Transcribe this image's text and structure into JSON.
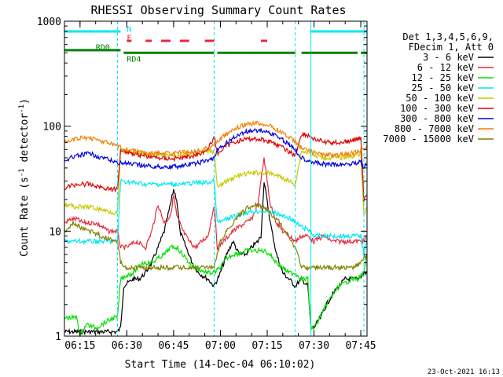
{
  "chart_data": {
    "type": "line",
    "title": "RHESSI Observing Summary Count Rates",
    "xlabel": "Start Time (14-Dec-04 06:10:02)",
    "ylabel_main": "Count Rate (s",
    "ylabel_sup1": "-1",
    "ylabel_mid": " detector",
    "ylabel_sup2": "-1",
    "ylabel_end": ")",
    "yscale": "log",
    "xlim": [
      "06:10",
      "07:47"
    ],
    "ylim": [
      1,
      1000
    ],
    "x_ticks": [
      "06:15",
      "06:30",
      "06:45",
      "07:00",
      "07:15",
      "07:30",
      "07:45"
    ],
    "y_ticks": [
      "1",
      "10",
      "100",
      "1000"
    ],
    "footer_date": "23-Oct-2021 16:13",
    "legend": {
      "header": [
        "Det 1,3,4,5,6,9,",
        "FDecim 1, Att 0"
      ],
      "entries": [
        {
          "label": "3 - 6 keV",
          "color": "#000000"
        },
        {
          "label": "6 - 12 keV",
          "color": "#e8283c"
        },
        {
          "label": "12 - 25 keV",
          "color": "#00e000"
        },
        {
          "label": "25 - 50 keV",
          "color": "#00e8f0"
        },
        {
          "label": "50 - 100 keV",
          "color": "#c8c800"
        },
        {
          "label": "100 - 300 keV",
          "color": "#e00000"
        },
        {
          "label": "300 - 800 keV",
          "color": "#0000e0"
        },
        {
          "label": "800 - 7000 keV",
          "color": "#f08000"
        },
        {
          "label": "7000 - 15000 keV",
          "color": "#808000"
        }
      ]
    },
    "flags": [
      {
        "label": "N",
        "color": "#00e8f0",
        "segments": [
          [
            "06:10",
            "06:28"
          ],
          [
            "07:29",
            "07:47"
          ]
        ],
        "level": 800
      },
      {
        "label": "F",
        "color": "#e8283c",
        "segments": [
          [
            "06:30",
            "06:31:30"
          ],
          [
            "06:36",
            "06:38"
          ],
          [
            "06:41",
            "06:44"
          ],
          [
            "06:47",
            "06:50"
          ],
          [
            "06:55",
            "06:58"
          ],
          [
            "07:13",
            "07:15"
          ]
        ],
        "level": 650
      },
      {
        "label": "RD0",
        "color": "#008000",
        "segments": [
          [
            "06:10",
            "06:28"
          ]
        ],
        "level": 530
      },
      {
        "label": "RD4",
        "color": "#008000",
        "segments": [
          [
            "06:29",
            "06:58"
          ],
          [
            "06:59",
            "07:24"
          ],
          [
            "07:26",
            "07:44"
          ],
          [
            "07:45",
            "07:47"
          ]
        ],
        "level": 500
      }
    ],
    "vlines_cyan": [
      "06:27",
      "06:58",
      "07:24",
      "07:46"
    ],
    "vline_solid": "07:29",
    "series": [
      {
        "name": "3 - 6 keV",
        "color": "#000000",
        "x": [
          "06:10",
          "06:25",
          "06:27",
          "06:28",
          "06:29",
          "06:32",
          "06:34",
          "06:36",
          "06:38",
          "06:40",
          "06:42",
          "06:44",
          "06:45",
          "06:46",
          "06:47",
          "06:49",
          "06:51",
          "06:53",
          "06:56",
          "06:58",
          "07:00",
          "07:02",
          "07:04",
          "07:06",
          "07:08",
          "07:10",
          "07:12",
          "07:13",
          "07:14",
          "07:16",
          "07:18",
          "07:20",
          "07:22",
          "07:24",
          "07:26",
          "07:28",
          "07:29",
          "07:30",
          "07:32",
          "07:34",
          "07:36",
          "07:38",
          "07:40",
          "07:42",
          "07:44",
          "07:46",
          "07:47"
        ],
        "y": [
          1.1,
          1.1,
          1.1,
          1.2,
          3,
          3.5,
          3.5,
          4,
          5,
          7,
          10,
          18,
          25,
          20,
          10,
          7,
          5,
          4,
          3.5,
          3,
          4,
          6,
          8,
          6,
          6,
          7,
          8,
          9,
          30,
          12,
          6,
          4,
          3.5,
          3,
          3.5,
          3,
          1.2,
          1.2,
          1.5,
          2,
          2.5,
          3,
          3.5,
          3.5,
          3.5,
          4,
          4
        ]
      },
      {
        "name": "6 - 12 keV",
        "color": "#e8283c",
        "x": [
          "06:10",
          "06:12",
          "06:14",
          "06:16",
          "06:18",
          "06:20",
          "06:22",
          "06:24",
          "06:26",
          "06:27",
          "06:28",
          "06:30",
          "06:33",
          "06:36",
          "06:38",
          "06:40",
          "06:42",
          "06:44",
          "06:45",
          "06:46",
          "06:48",
          "06:50",
          "06:52",
          "06:54",
          "06:56",
          "06:58",
          "06:59",
          "07:01",
          "07:04",
          "07:06",
          "07:08",
          "07:10",
          "07:12",
          "07:14",
          "07:16",
          "07:18",
          "07:20",
          "07:22",
          "07:24",
          "07:26",
          "07:28",
          "07:30",
          "07:33",
          "07:36",
          "07:38",
          "07:40",
          "07:42",
          "07:44",
          "07:46",
          "07:47"
        ],
        "y": [
          12,
          13,
          13,
          12,
          12,
          12,
          11,
          10,
          10,
          10,
          7,
          7,
          8,
          7,
          10,
          18,
          12,
          14,
          22,
          14,
          10,
          8,
          7,
          8,
          9,
          18,
          7,
          8,
          10,
          11,
          12,
          13,
          18,
          50,
          18,
          12,
          10,
          9,
          8,
          9,
          9,
          8,
          9,
          8,
          8,
          8,
          8,
          8,
          8,
          9
        ]
      },
      {
        "name": "12 - 25 keV",
        "color": "#00e000",
        "x": [
          "06:10",
          "06:12",
          "06:14",
          "06:15",
          "06:17",
          "06:20",
          "06:24",
          "06:26",
          "06:27",
          "06:28",
          "06:30",
          "06:32",
          "06:35",
          "06:38",
          "06:40",
          "06:42",
          "06:44",
          "06:46",
          "06:48",
          "06:50",
          "06:52",
          "06:54",
          "06:56",
          "06:58",
          "07:00",
          "07:02",
          "07:04",
          "07:06",
          "07:08",
          "07:10",
          "07:12",
          "07:14",
          "07:16",
          "07:18",
          "07:20",
          "07:22",
          "07:24",
          "07:26",
          "07:28",
          "07:29",
          "07:30",
          "07:32",
          "07:34",
          "07:36",
          "07:38",
          "07:40",
          "07:42",
          "07:44",
          "07:46",
          "07:47"
        ],
        "y": [
          1.5,
          1.5,
          1.5,
          1,
          1.3,
          1.2,
          1.4,
          1.5,
          1.5,
          3.5,
          3.8,
          4,
          5,
          5,
          5.5,
          6,
          7,
          7,
          6,
          5,
          4.5,
          4.2,
          4,
          4,
          4.5,
          5.5,
          6,
          6.2,
          6.5,
          6.5,
          6.5,
          6.5,
          6,
          5,
          4.5,
          4,
          4,
          3.5,
          3.5,
          1.2,
          1.2,
          1.5,
          2,
          2.5,
          3,
          3.2,
          3.5,
          3.5,
          4,
          6
        ]
      },
      {
        "name": "25 - 50 keV",
        "color": "#00e8f0",
        "x": [
          "06:10",
          "06:14",
          "06:18",
          "06:22",
          "06:26",
          "06:27",
          "06:28",
          "06:32",
          "06:36",
          "06:40",
          "06:44",
          "06:48",
          "06:52",
          "06:56",
          "06:58",
          "06:59",
          "07:02",
          "07:05",
          "07:08",
          "07:11",
          "07:14",
          "07:17",
          "07:20",
          "07:23",
          "07:24",
          "07:26",
          "07:29",
          "07:30",
          "07:34",
          "07:38",
          "07:42",
          "07:45",
          "07:46",
          "07:47"
        ],
        "y": [
          8,
          8,
          8,
          8,
          8,
          8,
          30,
          29,
          28,
          28,
          28,
          28,
          29,
          29,
          30,
          12,
          13,
          14,
          15,
          15.5,
          15.5,
          15,
          14,
          13,
          12,
          11,
          10,
          9,
          9,
          9,
          9,
          9,
          6,
          9
        ]
      },
      {
        "name": "50 - 100 keV",
        "color": "#c8c800",
        "x": [
          "06:10",
          "06:14",
          "06:18",
          "06:22",
          "06:26",
          "06:27",
          "06:28",
          "06:32",
          "06:36",
          "06:40",
          "06:44",
          "06:48",
          "06:52",
          "06:56",
          "06:58",
          "06:59",
          "07:02",
          "07:05",
          "07:08",
          "07:11",
          "07:14",
          "07:17",
          "07:20",
          "07:23",
          "07:24",
          "07:26",
          "07:29",
          "07:30",
          "07:34",
          "07:38",
          "07:42",
          "07:45",
          "07:46",
          "07:47"
        ],
        "y": [
          18,
          17,
          17,
          16,
          15,
          15,
          58,
          56,
          54,
          53,
          53,
          54,
          55,
          57,
          58,
          26,
          30,
          33,
          35,
          36,
          36,
          35,
          32,
          29,
          28,
          58,
          55,
          52,
          50,
          50,
          52,
          55,
          14,
          17
        ]
      },
      {
        "name": "100 - 300 keV",
        "color": "#e00000",
        "x": [
          "06:10",
          "06:14",
          "06:18",
          "06:22",
          "06:26",
          "06:27",
          "06:28",
          "06:32",
          "06:36",
          "06:40",
          "06:44",
          "06:48",
          "06:52",
          "06:56",
          "06:58",
          "06:59",
          "07:02",
          "07:05",
          "07:08",
          "07:11",
          "07:14",
          "07:17",
          "07:20",
          "07:23",
          "07:24",
          "07:26",
          "07:29",
          "07:30",
          "07:34",
          "07:38",
          "07:42",
          "07:45",
          "07:46",
          "07:47"
        ],
        "y": [
          26,
          28,
          28,
          26,
          25,
          25,
          60,
          55,
          52,
          50,
          49,
          50,
          53,
          60,
          80,
          55,
          65,
          72,
          75,
          76,
          74,
          70,
          62,
          55,
          52,
          85,
          80,
          75,
          70,
          70,
          72,
          78,
          20,
          22
        ]
      },
      {
        "name": "300 - 800 keV",
        "color": "#0000e0",
        "x": [
          "06:10",
          "06:14",
          "06:18",
          "06:22",
          "06:26",
          "06:27",
          "06:28",
          "06:32",
          "06:36",
          "06:40",
          "06:44",
          "06:48",
          "06:52",
          "06:56",
          "06:58",
          "06:59",
          "07:02",
          "07:05",
          "07:08",
          "07:11",
          "07:14",
          "07:17",
          "07:20",
          "07:23",
          "07:24",
          "07:26",
          "07:29",
          "07:30",
          "07:34",
          "07:38",
          "07:42",
          "07:45",
          "07:46",
          "07:47"
        ],
        "y": [
          48,
          52,
          55,
          50,
          46,
          45,
          45,
          43,
          42,
          41,
          41,
          42,
          44,
          47,
          50,
          58,
          70,
          80,
          88,
          92,
          90,
          84,
          74,
          64,
          60,
          50,
          47,
          45,
          43,
          43,
          44,
          46,
          40,
          44
        ]
      },
      {
        "name": "800 - 7000 keV",
        "color": "#f08000",
        "x": [
          "06:10",
          "06:14",
          "06:18",
          "06:22",
          "06:26",
          "06:27",
          "06:28",
          "06:32",
          "06:36",
          "06:40",
          "06:44",
          "06:48",
          "06:52",
          "06:56",
          "06:58",
          "06:59",
          "07:02",
          "07:05",
          "07:08",
          "07:11",
          "07:14",
          "07:17",
          "07:20",
          "07:23",
          "07:24",
          "07:26",
          "07:29",
          "07:30",
          "07:34",
          "07:38",
          "07:42",
          "07:45",
          "07:46",
          "07:47"
        ],
        "y": [
          70,
          76,
          78,
          72,
          66,
          65,
          62,
          58,
          56,
          55,
          55,
          56,
          58,
          62,
          66,
          72,
          84,
          95,
          103,
          107,
          105,
          97,
          86,
          75,
          70,
          62,
          58,
          56,
          53,
          53,
          55,
          58,
          60,
          66
        ]
      },
      {
        "name": "7000 - 15000 keV",
        "color": "#808000",
        "x": [
          "06:10",
          "06:13",
          "06:15",
          "06:18",
          "06:22",
          "06:26",
          "06:27",
          "06:28",
          "06:30",
          "06:34",
          "06:38",
          "06:42",
          "06:46",
          "06:50",
          "06:54",
          "06:58",
          "07:00",
          "07:03",
          "07:06",
          "07:09",
          "07:12",
          "07:15",
          "07:18",
          "07:21",
          "07:24",
          "07:26",
          "07:29",
          "07:30",
          "07:34",
          "07:38",
          "07:42",
          "07:45",
          "07:47"
        ],
        "y": [
          10,
          12,
          11,
          10,
          9,
          8,
          8,
          5,
          4.5,
          4.5,
          4.5,
          4.5,
          4.5,
          4.5,
          4.5,
          4.5,
          8,
          11,
          14,
          17,
          18,
          16,
          13,
          10,
          7,
          4.5,
          4.5,
          4.5,
          4.5,
          4.5,
          4.5,
          5,
          6
        ]
      }
    ]
  }
}
